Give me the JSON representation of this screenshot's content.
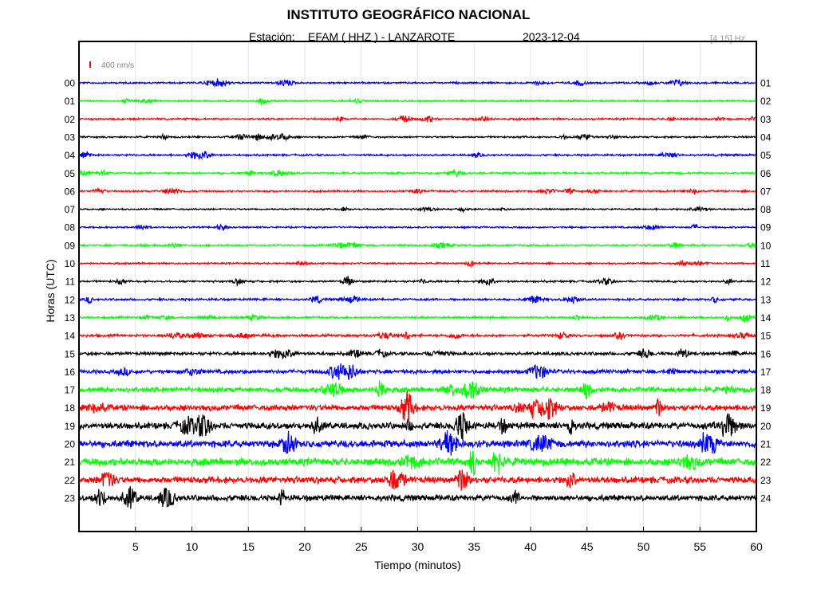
{
  "header": {
    "title": "INSTITUTO GEOGRÁFICO NACIONAL",
    "station_label": "Estación:",
    "station": "EFAM ( HHZ ) - LANZAROTE",
    "date": "2023-12-04",
    "filter": "[4 15] Hz"
  },
  "chart_data": {
    "type": "line",
    "title": "INSTITUTO GEOGRÁFICO NACIONAL",
    "xlabel": "Tiempo (minutos)",
    "ylabel": "Horas (UTC)",
    "xlim": [
      0,
      60
    ],
    "x_ticks": [
      5,
      10,
      15,
      20,
      25,
      30,
      35,
      40,
      45,
      50,
      55,
      60
    ],
    "grid": "vertical",
    "scale_label": "400 nm/s",
    "scale_color": "#ff0000",
    "color_cycle": [
      "#0000ff",
      "#00ff00",
      "#ff0000",
      "#000000"
    ],
    "left_labels": [
      "00",
      "01",
      "02",
      "03",
      "04",
      "05",
      "06",
      "07",
      "08",
      "09",
      "10",
      "11",
      "12",
      "13",
      "14",
      "15",
      "16",
      "17",
      "18",
      "19",
      "20",
      "21",
      "22",
      "23"
    ],
    "right_labels": [
      "01",
      "02",
      "03",
      "04",
      "05",
      "06",
      "07",
      "08",
      "09",
      "10",
      "11",
      "12",
      "13",
      "14",
      "15",
      "16",
      "17",
      "18",
      "19",
      "20",
      "21",
      "22",
      "23",
      "24"
    ],
    "noise_level": [
      0.15,
      0.14,
      0.15,
      0.14,
      0.16,
      0.16,
      0.15,
      0.13,
      0.14,
      0.14,
      0.14,
      0.16,
      0.18,
      0.18,
      0.22,
      0.26,
      0.32,
      0.42,
      0.5,
      0.55,
      0.6,
      0.62,
      0.55,
      0.5
    ]
  }
}
